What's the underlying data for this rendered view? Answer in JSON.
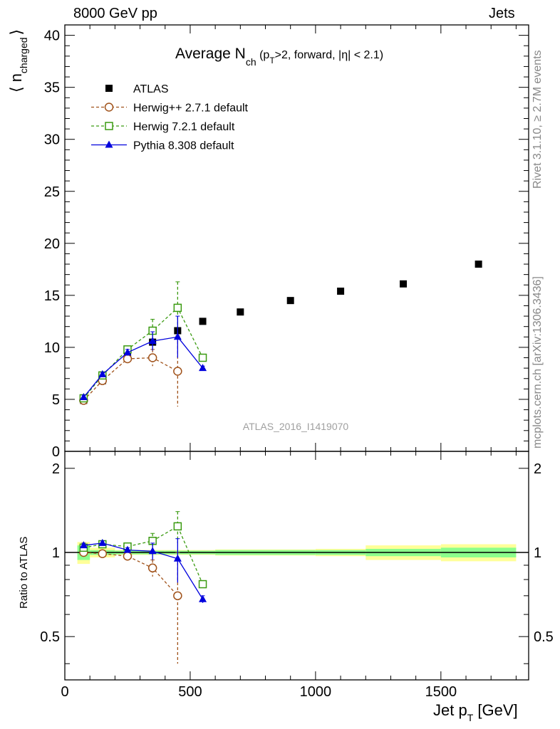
{
  "header": {
    "left": "8000 GeV pp",
    "right": "Jets"
  },
  "side_text": {
    "version": "Rivet 3.1.10, ≥ 2.7M events",
    "source": "mcplots.cern.ch [arXiv:1306.3436]"
  },
  "watermark": "ATLAS_2016_I1419070",
  "colors": {
    "data": "#000000",
    "herwigpp": "#a0521a",
    "herwig7": "#3a9a10",
    "pythia": "#0000dd",
    "band_inner": "#8cff8c",
    "band_outer": "#ffff99"
  },
  "chart_data": [
    {
      "type": "line",
      "title": "Average N_ch (p_T>2, forward, |η| < 2.1)",
      "title_parts": {
        "main": "Average N",
        "main_sub": "ch",
        "rest_a": " (p",
        "rest_sub": "T",
        "rest_b": ">2, forward, |η| < 2.1)"
      },
      "ylabel": "⟨ n_charged ⟩",
      "ylabel_parts": {
        "open": "⟨ n",
        "sub": "charged",
        "close": "⟩"
      },
      "xlim": [
        0,
        1850
      ],
      "ylim": [
        0,
        41
      ],
      "yticks": [
        0,
        5,
        10,
        15,
        20,
        25,
        30,
        35,
        40
      ],
      "series": [
        {
          "name": "ATLAS",
          "marker": "square-filled",
          "x": [
            75,
            150,
            250,
            350,
            450,
            550,
            700,
            900,
            1100,
            1350,
            1650
          ],
          "y": [
            4.9,
            6.8,
            9.3,
            10.5,
            11.6,
            12.5,
            13.4,
            14.5,
            15.4,
            16.1,
            18.0
          ]
        },
        {
          "name": "Herwig++ 2.7.1 default",
          "marker": "circle-open",
          "dash": "dashed",
          "x": [
            75,
            150,
            250,
            350,
            450
          ],
          "y": [
            4.9,
            6.8,
            8.9,
            9.0,
            7.7
          ],
          "err": [
            0.2,
            0.3,
            0.3,
            0.8,
            3.4
          ]
        },
        {
          "name": "Herwig 7.2.1 default",
          "marker": "square-open",
          "dash": "dashed",
          "x": [
            75,
            150,
            250,
            350,
            450,
            550
          ],
          "y": [
            5.1,
            7.3,
            9.8,
            11.6,
            13.8,
            9.0
          ],
          "err": [
            0.2,
            0.3,
            0.3,
            1.1,
            2.5,
            0.2
          ]
        },
        {
          "name": "Pythia 8.308 default",
          "marker": "triangle-filled",
          "dash": "solid",
          "x": [
            75,
            150,
            250,
            350,
            450,
            550
          ],
          "y": [
            5.2,
            7.4,
            9.5,
            10.6,
            11.0,
            8.0
          ],
          "err": [
            0.2,
            0.2,
            0.3,
            0.9,
            2.0,
            0.2
          ]
        }
      ]
    },
    {
      "type": "line",
      "title": "",
      "ylabel": "Ratio to ATLAS",
      "xlabel": "Jet p_T [GeV]",
      "xlabel_parts": {
        "main": "Jet p",
        "sub": "T",
        "unit": " [GeV]"
      },
      "xlim": [
        0,
        1850
      ],
      "ylim": [
        0.35,
        2.3
      ],
      "xticks": [
        0,
        500,
        1000,
        1500
      ],
      "yticks": [
        0.5,
        1,
        2
      ],
      "reference_band": {
        "bin_edges": [
          50,
          100,
          200,
          300,
          400,
          500,
          600,
          800,
          1000,
          1200,
          1500,
          1800
        ],
        "inner": [
          0.06,
          0.02,
          0.015,
          0.015,
          0.015,
          0.015,
          0.02,
          0.02,
          0.02,
          0.03,
          0.04
        ],
        "outer": [
          0.09,
          0.04,
          0.02,
          0.02,
          0.02,
          0.02,
          0.025,
          0.025,
          0.03,
          0.06,
          0.07
        ]
      },
      "series": [
        {
          "name": "Herwig++ 2.7.1 default",
          "x": [
            75,
            150,
            250,
            350,
            450
          ],
          "y": [
            1.0,
            0.99,
            0.97,
            0.88,
            0.7
          ],
          "err": [
            0.02,
            0.02,
            0.03,
            0.06,
            0.3
          ]
        },
        {
          "name": "Herwig 7.2.1 default",
          "x": [
            75,
            150,
            250,
            350,
            450,
            550
          ],
          "y": [
            1.04,
            1.07,
            1.05,
            1.1,
            1.24,
            0.77
          ],
          "err": [
            0.02,
            0.02,
            0.02,
            0.07,
            0.16,
            0.02
          ]
        },
        {
          "name": "Pythia 8.308 default",
          "x": [
            75,
            150,
            250,
            350,
            450,
            550
          ],
          "y": [
            1.06,
            1.08,
            1.02,
            1.01,
            0.95,
            0.68
          ],
          "err": [
            0.02,
            0.02,
            0.02,
            0.07,
            0.17,
            0.02
          ]
        }
      ]
    }
  ]
}
